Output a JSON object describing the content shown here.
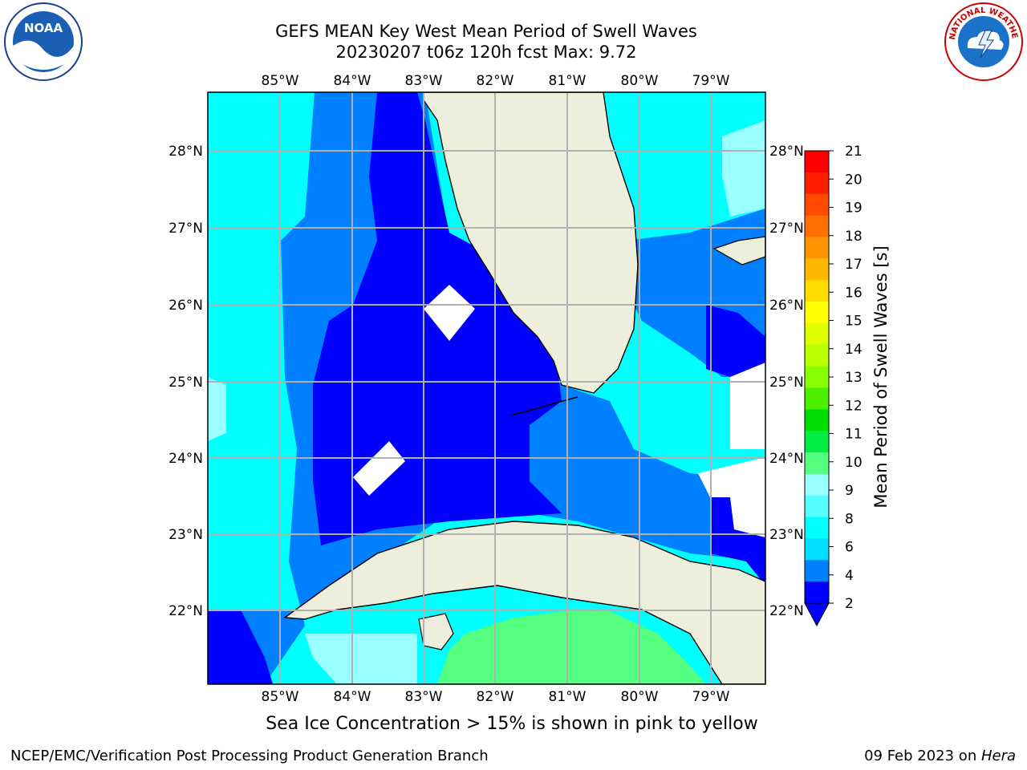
{
  "header": {
    "title_line1": "GEFS MEAN Key West Mean Period of Swell Waves",
    "title_line2": "20230207 t06z 120h fcst   Max: 9.72"
  },
  "map": {
    "lon_labels": [
      "85°W",
      "84°W",
      "83°W",
      "82°W",
      "81°W",
      "80°W",
      "79°W"
    ],
    "lat_labels": [
      "28°N",
      "27°N",
      "26°N",
      "25°N",
      "24°N",
      "23°N",
      "22°N"
    ],
    "colors": {
      "land": "#eeeedc",
      "grid": "#b0b0b0",
      "level_2_4": "#0000ff",
      "level_4_6": "#0080ff",
      "level_6_8": "#00ffff",
      "level_8_9": "#99ffff",
      "level_9_10": "#55ff80"
    }
  },
  "colorbar": {
    "label": "Mean Period of Swell Waves [s]",
    "ticks": [
      "21",
      "20",
      "19",
      "18",
      "17",
      "16",
      "15",
      "14",
      "13",
      "12",
      "11",
      "10",
      "9",
      "8",
      "6",
      "4",
      "2"
    ],
    "colors": [
      "#ff0000",
      "#ff2000",
      "#ff4a00",
      "#ff7000",
      "#ff9400",
      "#ffb800",
      "#ffdd00",
      "#ffff00",
      "#ddff00",
      "#b8ff00",
      "#88ff00",
      "#4cee00",
      "#00dd00",
      "#00ee44",
      "#55ff80",
      "#99ffff",
      "#55ffff",
      "#00ffff",
      "#00dfff",
      "#0080ff",
      "#0000ff"
    ]
  },
  "logos": {
    "noaa_text": "NOAA",
    "nws_text": "NATIONAL WEATHER SERVICE"
  },
  "caption": "Sea Ice Concentration > 15% is shown in pink to yellow",
  "footer": {
    "left": "NCEP/EMC/Verification Post Processing Product Generation Branch",
    "right_date": "09 Feb 2023 on ",
    "right_host": "Hera"
  }
}
